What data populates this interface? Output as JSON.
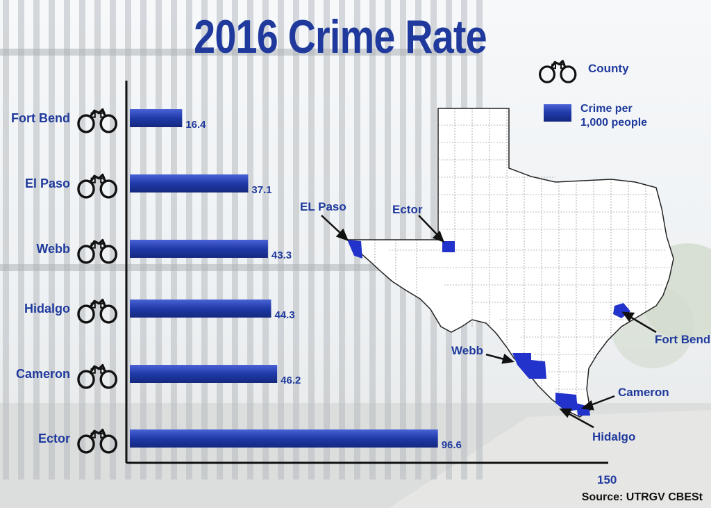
{
  "chart_data": {
    "type": "bar",
    "orientation": "horizontal",
    "title": "2016 Crime Rate",
    "categories": [
      "Fort Bend",
      "El Paso",
      "Webb",
      "Hidalgo",
      "Cameron",
      "Ector"
    ],
    "values": [
      16.4,
      37.1,
      43.3,
      44.3,
      46.2,
      96.6
    ],
    "value_labels": [
      "16.4",
      "37.1",
      "43.3",
      "44.3",
      "46.2",
      "96.6"
    ],
    "xlim": [
      0,
      150
    ],
    "axis_max_label": "150",
    "bar_color": "#1f3aa8",
    "legend": {
      "position": "top-right",
      "items": [
        {
          "icon": "handcuffs-icon",
          "label": "County"
        },
        {
          "icon": "blue-bar-swatch",
          "label_line1": "Crime per",
          "label_line2": "1,000 people"
        }
      ]
    }
  },
  "map": {
    "highlight_color": "#2233cc",
    "callouts": [
      "EL Paso",
      "Ector",
      "Fort Bend",
      "Webb",
      "Cameron",
      "Hidalgo"
    ]
  },
  "source": "Source: UTRGV CBESt"
}
